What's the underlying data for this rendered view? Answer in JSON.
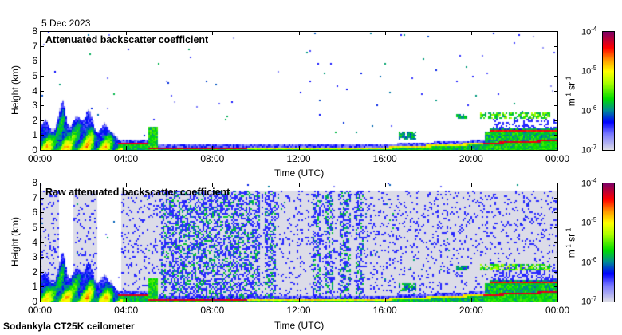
{
  "date_label": "5 Dec 2023",
  "footer": "Sodankyla CT25K ceilometer",
  "chart_data": [
    {
      "type": "heatmap",
      "title": "Attenuated backscatter coefficient",
      "xlabel": "Time (UTC)",
      "ylabel": "Height (km)",
      "xlim": [
        0,
        24
      ],
      "ylim": [
        0,
        8
      ],
      "xticks": [
        "00:00",
        "04:00",
        "08:00",
        "12:00",
        "16:00",
        "20:00",
        "00:00"
      ],
      "yticks": [
        "0",
        "1",
        "2",
        "3",
        "4",
        "5",
        "6",
        "7",
        "8"
      ],
      "colorbar": {
        "label_base": "m",
        "label_exp1": "-1",
        "label_mid": " sr",
        "label_exp2": "-1",
        "scale": "log",
        "range": [
          -7,
          -4
        ],
        "ticks": [
          {
            "base": "10",
            "exp": "-4"
          },
          {
            "base": "10",
            "exp": "-5"
          },
          {
            "base": "10",
            "exp": "-6"
          },
          {
            "base": "10",
            "exp": "-7"
          }
        ]
      },
      "noise_background": false
    },
    {
      "type": "heatmap",
      "title": "Raw attenuated backscatter coefficient",
      "xlabel": "Time (UTC)",
      "ylabel": "Height (km)",
      "xlim": [
        0,
        24
      ],
      "ylim": [
        0,
        8
      ],
      "xticks": [
        "00:00",
        "04:00",
        "08:00",
        "12:00",
        "16:00",
        "20:00",
        "00:00"
      ],
      "yticks": [
        "0",
        "1",
        "2",
        "3",
        "4",
        "5",
        "6",
        "7",
        "8"
      ],
      "colorbar": {
        "label_base": "m",
        "label_exp1": "-1",
        "label_mid": " sr",
        "label_exp2": "-1",
        "scale": "log",
        "range": [
          -7,
          -4
        ],
        "ticks": [
          {
            "base": "10",
            "exp": "-4"
          },
          {
            "base": "10",
            "exp": "-5"
          },
          {
            "base": "10",
            "exp": "-6"
          },
          {
            "base": "10",
            "exp": "-7"
          }
        ]
      },
      "noise_background": true,
      "noise_max_height_km": 7.5,
      "no_data_intervals_h": [
        [
          0.85,
          1.5
        ],
        [
          2.6,
          3.7
        ]
      ],
      "dense_noise_intervals_h": [
        [
          5.55,
          10.2
        ],
        [
          10.4,
          10.9
        ],
        [
          12.6,
          13.0
        ],
        [
          13.2,
          13.6
        ],
        [
          13.9,
          14.4
        ],
        [
          14.6,
          15.0
        ]
      ]
    }
  ],
  "features": [
    {
      "name": "boundary-layer-plumes",
      "t": [
        0,
        3.7
      ],
      "h_top_max": 3.3,
      "log_beta": -5.2
    },
    {
      "name": "low-layer",
      "t": [
        3.7,
        5.0
      ],
      "h": 0.5,
      "log_beta": -4.4
    },
    {
      "name": "surface-layer",
      "t": [
        5.0,
        24
      ],
      "h_start": 0.2,
      "h_end": 0.7,
      "log_beta": -4.5
    },
    {
      "name": "cloud-1",
      "t": [
        16.5,
        17.5
      ],
      "h": [
        0.8,
        1.3
      ],
      "log_beta": -5.8
    },
    {
      "name": "cloud-2",
      "t": [
        19.3,
        19.8
      ],
      "h": [
        2.2,
        2.5
      ],
      "log_beta": -5.9
    },
    {
      "name": "cloud-3",
      "t": [
        20.5,
        23.5
      ],
      "h": [
        2.2,
        2.5
      ],
      "log_beta": -5.4
    },
    {
      "name": "cloud-base",
      "t": [
        20.8,
        24
      ],
      "h": [
        1.3,
        1.5
      ],
      "log_beta": -4.3
    }
  ]
}
